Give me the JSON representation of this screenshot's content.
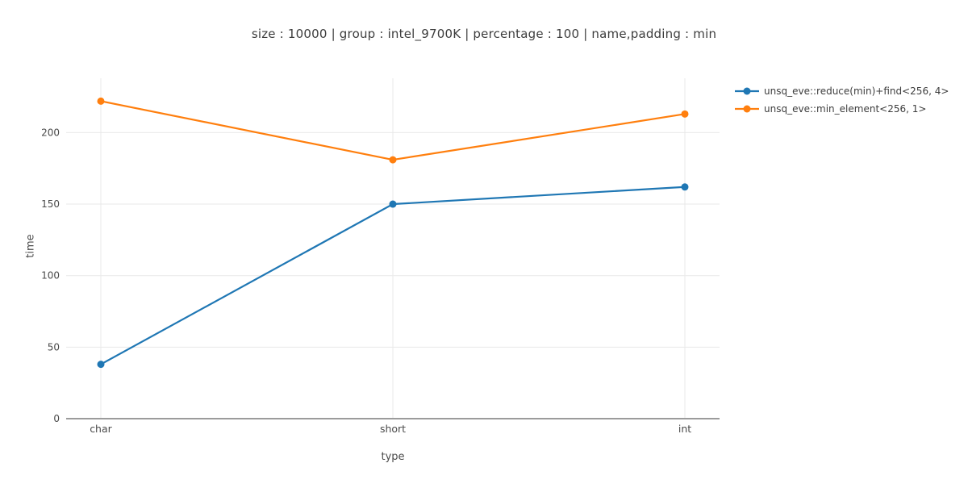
{
  "chart_data": {
    "type": "line",
    "title": "size : 10000 | group : intel_9700K | percentage : 100 | name,padding : min",
    "xlabel": "type",
    "ylabel": "time",
    "categories": [
      "char",
      "short",
      "int"
    ],
    "series": [
      {
        "name": "unsq_eve::reduce(min)+find<256, 4>",
        "color": "#1f77b4",
        "values": [
          38,
          150,
          162
        ]
      },
      {
        "name": "unsq_eve::min_element<256, 1>",
        "color": "#ff7f0e",
        "values": [
          222,
          181,
          213
        ]
      }
    ],
    "ylim": [
      0,
      238
    ],
    "yticks": [
      0,
      50,
      100,
      150,
      200
    ],
    "grid": true,
    "legend_position": "top-right-outside"
  },
  "colors": {
    "series_blue": "#1f77b4",
    "series_orange": "#ff7f0e",
    "gridline": "#e9e9e9",
    "zeroline": "#9b9b9b",
    "tick_text": "#4a4a4a",
    "title_text": "#3d3d3d"
  }
}
